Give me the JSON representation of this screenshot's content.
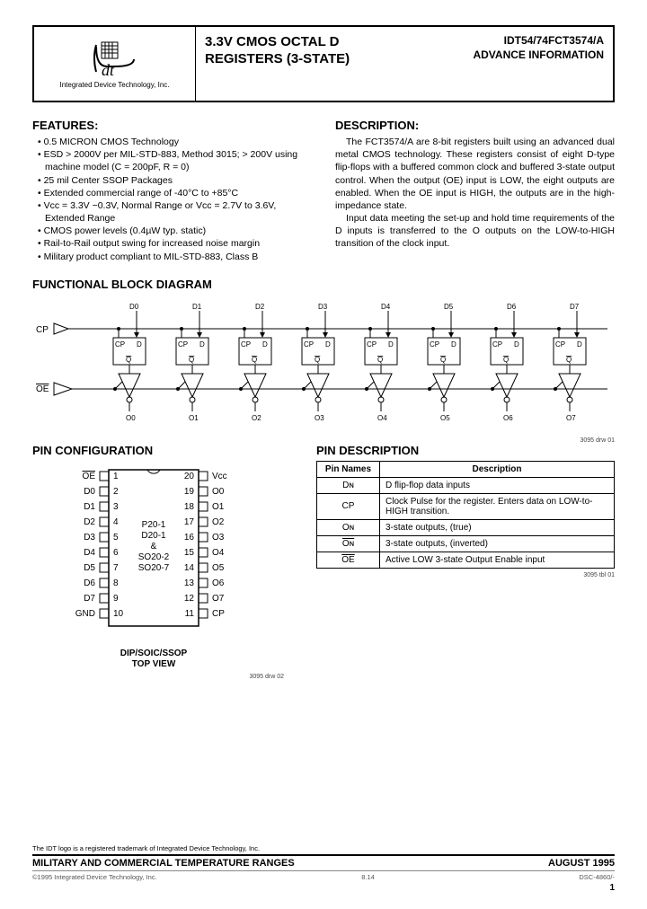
{
  "header": {
    "company": "Integrated Device Technology, Inc.",
    "title_line1": "3.3V CMOS OCTAL D",
    "title_line2": "REGISTERS (3-STATE)",
    "part": "IDT54/74FCT3574/A",
    "info": "ADVANCE INFORMATION"
  },
  "features": {
    "heading": "FEATURES:",
    "items": [
      "0.5 MICRON CMOS Technology",
      "ESD > 2000V per MIL-STD-883, Method 3015; > 200V using machine model (C = 200pF, R = 0)",
      "25 mil Center SSOP Packages",
      "Extended commercial range of -40°C to +85°C",
      "Vcc = 3.3V −0.3V, Normal Range or Vcc = 2.7V to 3.6V, Extended Range",
      "CMOS power levels (0.4µW typ. static)",
      "Rail-to-Rail output swing for increased noise margin",
      "Military product compliant to MIL-STD-883, Class B"
    ]
  },
  "description": {
    "heading": "DESCRIPTION:",
    "p1": "The FCT3574/A are 8-bit registers built using an advanced dual metal CMOS technology. These registers consist of eight D-type flip-flops with a buffered common clock and buffered 3-state output control. When the output (OE) input is LOW, the eight outputs are enabled. When the OE input is HIGH, the outputs are in the high-impedance state.",
    "p2": "Input data meeting the set-up and hold time requirements of the D inputs is transferred to the O outputs on the LOW-to-HIGH transition of the clock input."
  },
  "block_diagram": {
    "heading": "FUNCTIONAL BLOCK DIAGRAM",
    "drw": "3095 drw 01",
    "cp_label": "CP",
    "oe_label": "OE",
    "d_labels": [
      "D0",
      "D1",
      "D2",
      "D3",
      "D4",
      "D5",
      "D6",
      "D7"
    ],
    "o_labels": [
      "O0",
      "O1",
      "O2",
      "O3",
      "O4",
      "O5",
      "O6",
      "O7"
    ],
    "ff": {
      "cp": "CP",
      "d": "D",
      "q": "Q"
    }
  },
  "pin_config": {
    "heading": "PIN CONFIGURATION",
    "caption1": "DIP/SOIC/SSOP",
    "caption2": "TOP VIEW",
    "drw": "3095 drw 02",
    "pkg_lines": [
      "P20-1",
      "D20-1",
      "&",
      "SO20-2",
      "SO20-7"
    ],
    "left": [
      {
        "n": "1",
        "lbl": "OE",
        "ov": true
      },
      {
        "n": "2",
        "lbl": "D0"
      },
      {
        "n": "3",
        "lbl": "D1"
      },
      {
        "n": "4",
        "lbl": "D2"
      },
      {
        "n": "5",
        "lbl": "D3"
      },
      {
        "n": "6",
        "lbl": "D4"
      },
      {
        "n": "7",
        "lbl": "D5"
      },
      {
        "n": "8",
        "lbl": "D6"
      },
      {
        "n": "9",
        "lbl": "D7"
      },
      {
        "n": "10",
        "lbl": "GND"
      }
    ],
    "right": [
      {
        "n": "20",
        "lbl": "Vcc"
      },
      {
        "n": "19",
        "lbl": "O0"
      },
      {
        "n": "18",
        "lbl": "O1"
      },
      {
        "n": "17",
        "lbl": "O2"
      },
      {
        "n": "16",
        "lbl": "O3"
      },
      {
        "n": "15",
        "lbl": "O4"
      },
      {
        "n": "14",
        "lbl": "O5"
      },
      {
        "n": "13",
        "lbl": "O6"
      },
      {
        "n": "12",
        "lbl": "O7"
      },
      {
        "n": "11",
        "lbl": "CP"
      }
    ]
  },
  "pin_desc": {
    "heading": "PIN DESCRIPTION",
    "col1": "Pin Names",
    "col2": "Description",
    "drw": "3095 tbl 01",
    "rows": [
      {
        "name": "Dɴ",
        "ov": false,
        "desc": "D flip-flop data inputs"
      },
      {
        "name": "CP",
        "ov": false,
        "desc": "Clock Pulse for the register. Enters data on LOW-to-HIGH transition."
      },
      {
        "name": "Oɴ",
        "ov": false,
        "desc": "3-state outputs, (true)"
      },
      {
        "name": "Oɴ",
        "ov": true,
        "desc": "3-state outputs, (inverted)"
      },
      {
        "name": "OE",
        "ov": true,
        "desc": "Active LOW 3-state Output Enable input"
      }
    ]
  },
  "footer": {
    "trademark": "The IDT logo is a registered trademark of Integrated Device Technology, Inc.",
    "line_left": "MILITARY AND COMMERCIAL TEMPERATURE RANGES",
    "line_right": "AUGUST 1995",
    "copyright": "©1995 Integrated Device Technology, Inc.",
    "section": "8.14",
    "doc": "DSC-4860/-",
    "page": "1"
  },
  "colors": {
    "text": "#000000",
    "border": "#000000",
    "bg": "#ffffff"
  }
}
